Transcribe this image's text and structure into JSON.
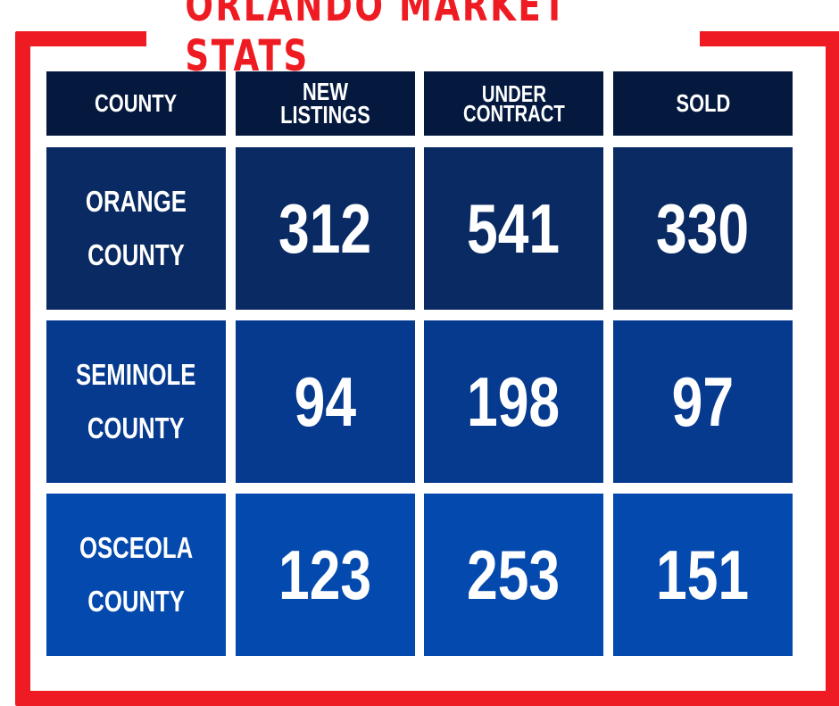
{
  "title": "ORLANDO MARKET STATS",
  "headers": {
    "county": "COUNTY",
    "new_listings": "NEW LISTINGS",
    "under_contract": "UNDER\nCONTRACT",
    "sold": "SOLD"
  },
  "rows": [
    {
      "county": "ORANGE\nCOUNTY",
      "new_listings": "312",
      "under_contract": "541",
      "sold": "330"
    },
    {
      "county": "SEMINOLE\nCOUNTY",
      "new_listings": "94",
      "under_contract": "198",
      "sold": "97"
    },
    {
      "county": "OSCEOLA\nCOUNTY",
      "new_listings": "123",
      "under_contract": "253",
      "sold": "151"
    }
  ],
  "colors": {
    "frame": "#ee1c22",
    "header_bg": "#05193f",
    "row1_bg": "#0a2a63",
    "row2_bg": "#063a8e",
    "row3_bg": "#0449ad",
    "text": "#ffffff"
  }
}
